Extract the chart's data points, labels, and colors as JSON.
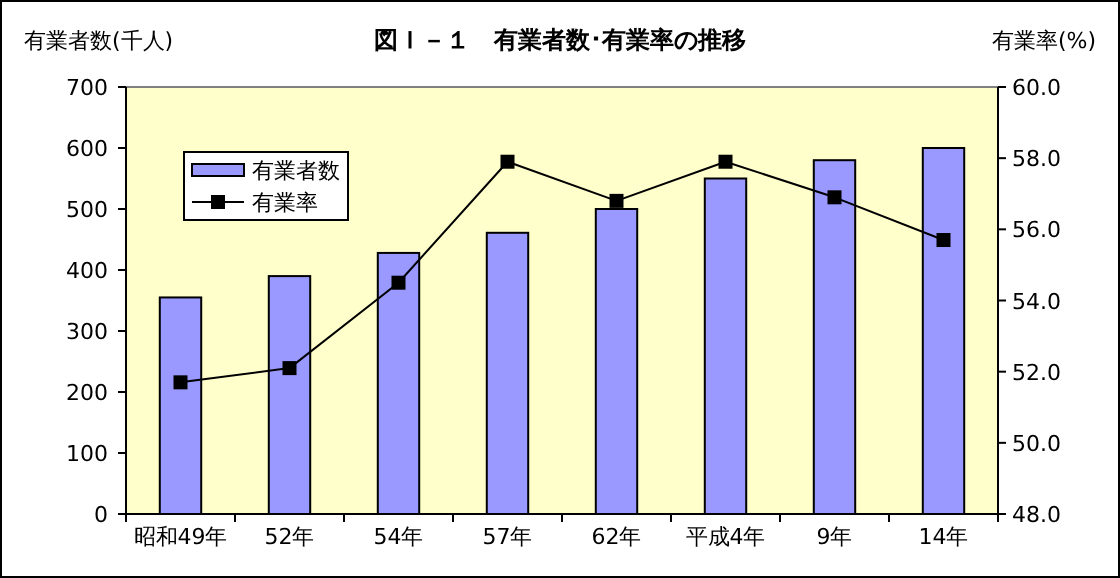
{
  "chart_data": {
    "type": "bar",
    "title": "図Ｉ－１　有業者数･有業率の推移",
    "ylabel": "有業者数(千人)",
    "y2label": "有業率(%)",
    "categories": [
      "昭和49年",
      "52年",
      "54年",
      "57年",
      "62年",
      "平成4年",
      "9年",
      "14年"
    ],
    "series": [
      {
        "name": "有業者数",
        "color": "#9999ff",
        "values": [
          355,
          390,
          428,
          461,
          500,
          550,
          580,
          600
        ]
      },
      {
        "name": "有業率",
        "type": "line",
        "axis": "y2",
        "color": "#000000",
        "marker": "square",
        "values": [
          51.7,
          52.1,
          54.5,
          57.9,
          56.8,
          57.9,
          56.9,
          55.7
        ]
      }
    ],
    "ylim": [
      0,
      700
    ],
    "yticks": [
      0,
      100,
      200,
      300,
      400,
      500,
      600,
      700
    ],
    "y2lim": [
      48,
      60
    ],
    "y2ticks": [
      {
        "value": 48,
        "label": "48.0"
      },
      {
        "value": 50,
        "label": "50.0"
      },
      {
        "value": 52,
        "label": "52.0"
      },
      {
        "value": 54,
        "label": "54.0"
      },
      {
        "value": 56,
        "label": "56.0"
      },
      {
        "value": 58,
        "label": "58.0"
      },
      {
        "value": 60,
        "label": "60.0"
      }
    ],
    "grid": false,
    "legend": "top left"
  }
}
